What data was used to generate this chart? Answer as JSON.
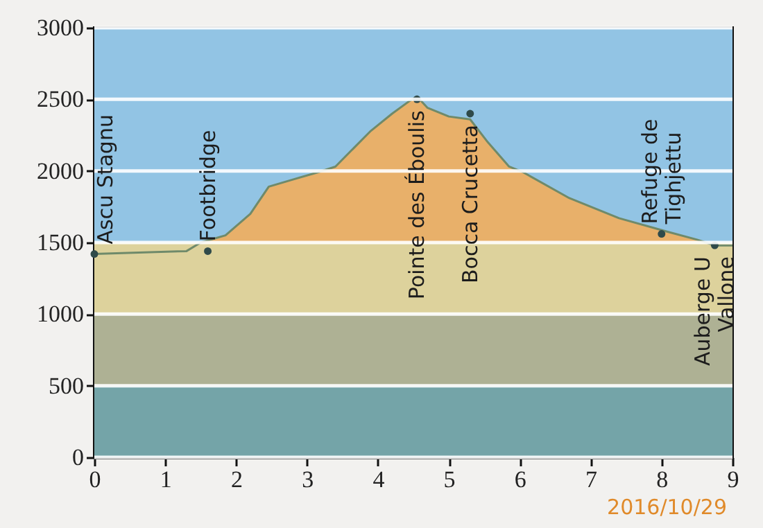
{
  "chart_data": {
    "type": "area",
    "x": [
      0,
      1.3,
      1.5,
      1.85,
      2.2,
      2.46,
      2.8,
      3.15,
      3.4,
      3.9,
      4.2,
      4.45,
      4.55,
      4.7,
      5.0,
      5.3,
      5.55,
      5.85,
      6.05,
      6.7,
      7.4,
      8.05,
      8.5,
      8.75,
      9.0
    ],
    "series": [
      {
        "color": "#e8b06a",
        "values": [
          1420,
          1440,
          1500,
          1550,
          1700,
          1890,
          1940,
          1990,
          2030,
          2280,
          2400,
          2490,
          2520,
          2440,
          2380,
          2360,
          2200,
          2030,
          1990,
          1810,
          1670,
          1580,
          1520,
          1480,
          1480
        ]
      },
      {
        "type": "scatter",
        "color": "#2f4a4a",
        "marker": "circle",
        "x": [
          0,
          1.6,
          4.55,
          5.3,
          8.0,
          8.75
        ],
        "values": [
          1420,
          1440,
          2500,
          2400,
          1560,
          1480
        ]
      }
    ],
    "xlim": [
      0,
      9
    ],
    "xticks": [
      0,
      1,
      2,
      3,
      4,
      5,
      6,
      7,
      8,
      9
    ],
    "ylim": [
      0,
      3000
    ],
    "yticks": [
      0,
      500,
      1000,
      1500,
      2000,
      2500,
      3000
    ],
    "grid": "y",
    "bands": [
      {
        "axis": "y",
        "from": 0,
        "to": 500,
        "color": "#74a4a8"
      },
      {
        "axis": "y",
        "from": 500,
        "to": 1000,
        "color": "#aeb194"
      },
      {
        "axis": "y",
        "from": 1000,
        "to": 1500,
        "color": "#ddd29c"
      },
      {
        "axis": "y",
        "from": 1500,
        "to": 3000,
        "color": "#92c4e4"
      }
    ],
    "annotations": [
      {
        "text": "Ascu Stagnu",
        "x": 0,
        "y": 1420
      },
      {
        "text": "Footbridge",
        "x": 1.6,
        "y": 1440
      },
      {
        "text": "Pointe des Éboulis",
        "x": 4.55,
        "y": 2500
      },
      {
        "text": "Bocca Crucetta",
        "x": 5.3,
        "y": 2400
      },
      {
        "text": "Refuge de\nTighjettu",
        "x": 8.0,
        "y": 1560
      },
      {
        "text": "Auberge U\nVallone",
        "x": 8.75,
        "y": 1480
      },
      "2016/10/29"
    ]
  }
}
